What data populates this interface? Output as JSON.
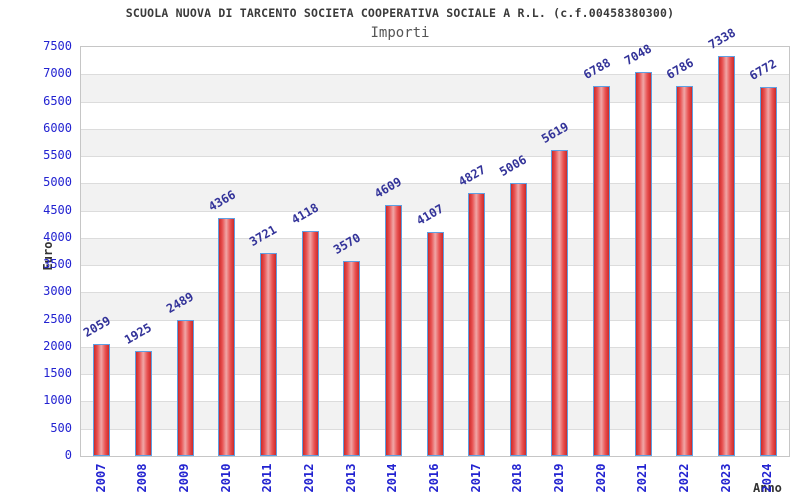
{
  "chart_data": {
    "type": "bar",
    "title": "SCUOLA NUOVA DI TARCENTO SOCIETA COOPERATIVA SOCIALE A R.L. (c.f.00458380300)",
    "subtitle": "Importi",
    "xlabel": "Anno",
    "ylabel": "Euro",
    "categories": [
      "2007",
      "2008",
      "2009",
      "2010",
      "2011",
      "2012",
      "2013",
      "2014",
      "2016",
      "2017",
      "2018",
      "2019",
      "2020",
      "2021",
      "2022",
      "2023",
      "2024"
    ],
    "values": [
      2059,
      1925,
      2489,
      4366,
      3721,
      4118,
      3570,
      4609,
      4107,
      4827,
      5006,
      5619,
      6788,
      7048,
      6786,
      7338,
      6772
    ],
    "ylim": [
      0,
      7500
    ],
    "ytick_step": 500,
    "yticks": [
      0,
      500,
      1000,
      1500,
      2000,
      2500,
      3000,
      3500,
      4000,
      4500,
      5000,
      5500,
      6000,
      6500,
      7000,
      7500
    ],
    "grid": "horizontal alternating bands, gridline every 500",
    "legend": "none",
    "colors": {
      "title": "#3a3a3a",
      "subtitle": "#555555",
      "axis_title": "#333333",
      "tick_label": "#2323d1",
      "value_label": "#333399",
      "band_gray": "#f2f2f2",
      "grid_line": "#dcdcdc",
      "plot_border": "#c6c6c6",
      "bar_border": "#5e9fe2",
      "bar_edge": "#cc2a2a",
      "bar_mid": "#e85050",
      "bar_center": "#f0a6a6"
    }
  }
}
